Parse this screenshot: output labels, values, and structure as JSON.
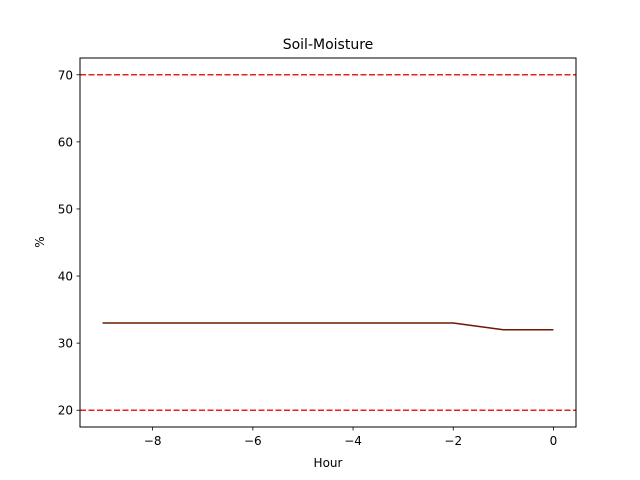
{
  "chart_data": {
    "type": "line",
    "title": "Soil-Moisture",
    "xlabel": "Hour",
    "ylabel": "%",
    "xlim": [
      -9.45,
      0.45
    ],
    "ylim": [
      17.5,
      72.5
    ],
    "xticks": [
      -8,
      -6,
      -4,
      -2,
      0
    ],
    "xtick_labels": [
      "−8",
      "−6",
      "−4",
      "−2",
      "0"
    ],
    "yticks": [
      20,
      30,
      40,
      50,
      60,
      70
    ],
    "ytick_labels": [
      "20",
      "30",
      "40",
      "50",
      "60",
      "70"
    ],
    "grid": false,
    "series": [
      {
        "color": "#6b1a00",
        "x": [
          -9,
          -8,
          -7,
          -6,
          -5,
          -4,
          -3,
          -2,
          -1,
          0
        ],
        "y": [
          33,
          33,
          33,
          33,
          33,
          33,
          33,
          33,
          32,
          32
        ]
      }
    ],
    "reference_lines": [
      {
        "y": 70,
        "color": "#e8211c",
        "style": "dashed"
      },
      {
        "y": 20,
        "color": "#e8211c",
        "style": "dashed"
      }
    ]
  }
}
